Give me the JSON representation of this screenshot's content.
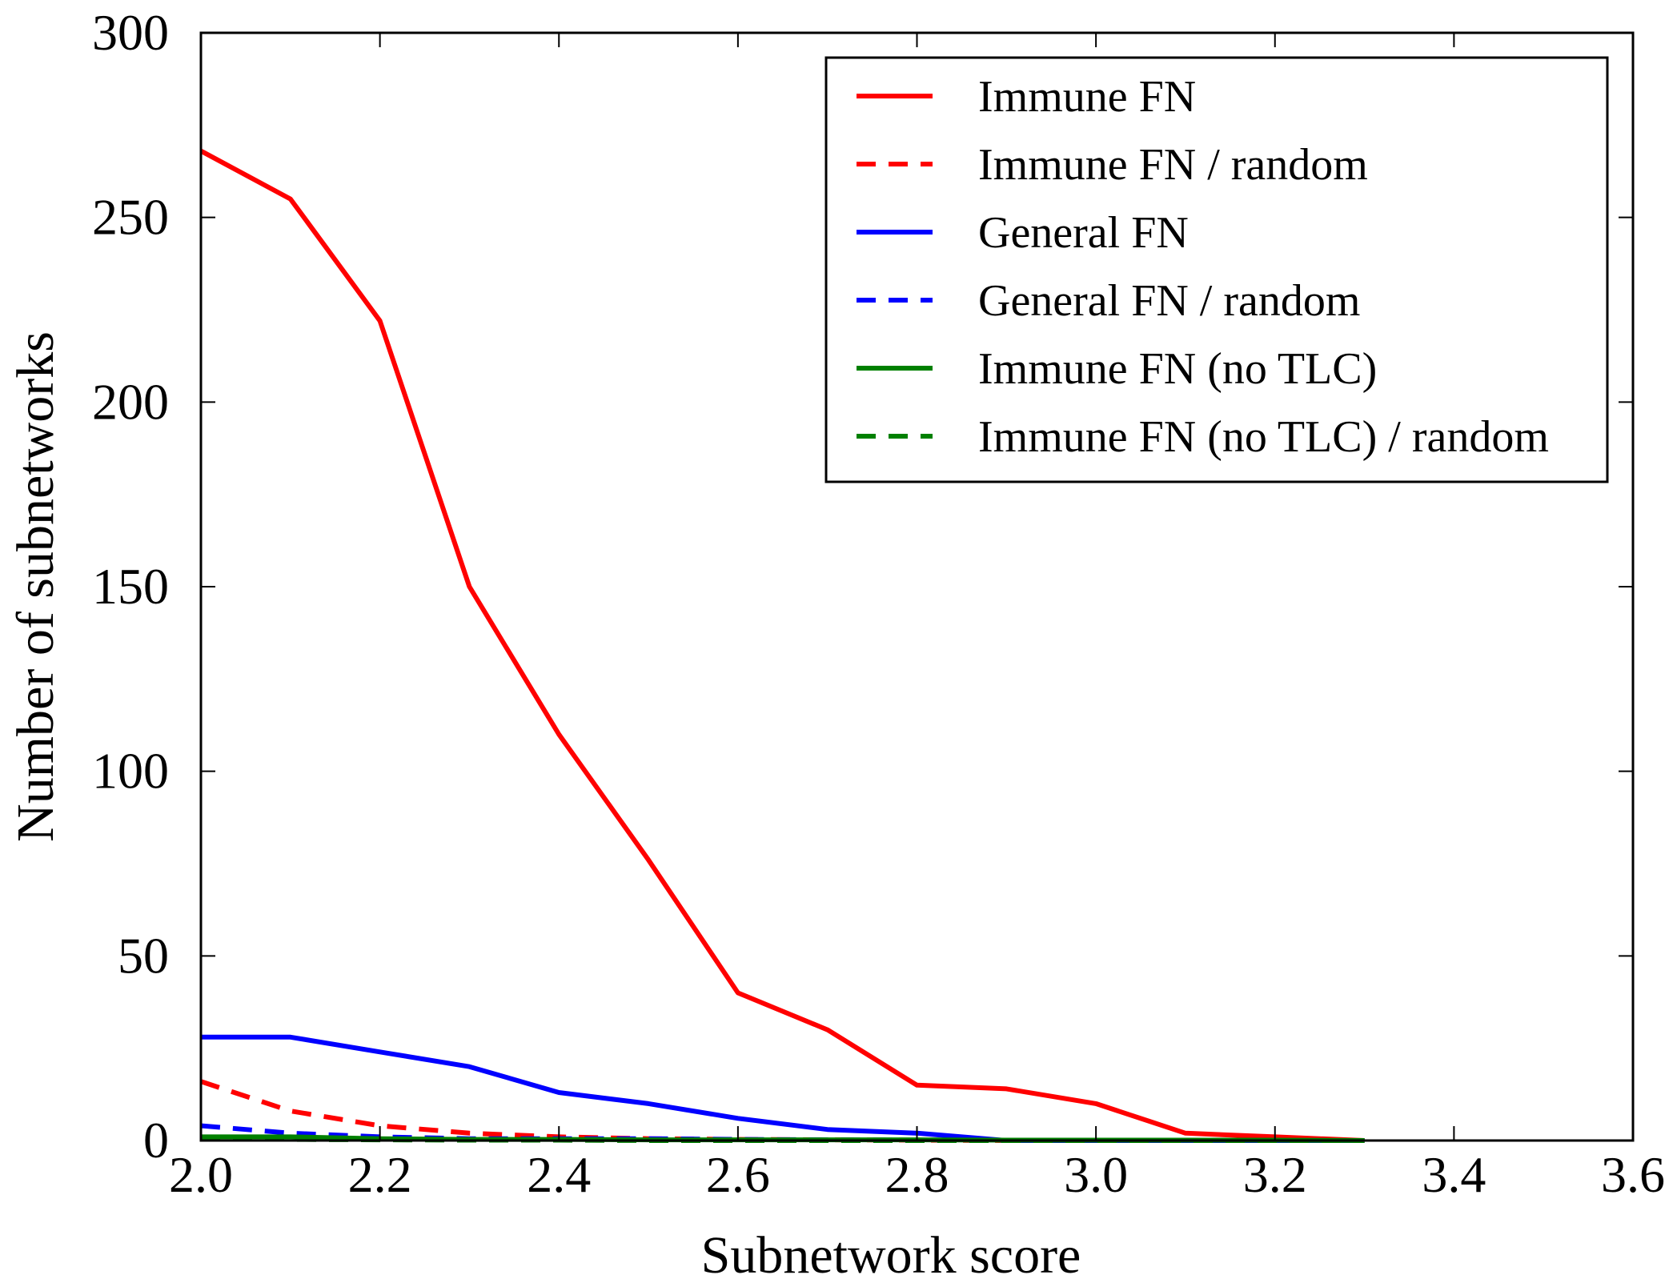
{
  "chart_data": {
    "type": "line",
    "title": "",
    "xlabel": "Subnetwork score",
    "ylabel": "Number of subnetworks",
    "xlim": [
      2.0,
      3.6
    ],
    "ylim": [
      0,
      300
    ],
    "xticks": [
      2.0,
      2.2,
      2.4,
      2.6,
      2.8,
      3.0,
      3.2,
      3.4,
      3.6
    ],
    "xtick_labels": [
      "2.0",
      "2.2",
      "2.4",
      "2.6",
      "2.8",
      "3.0",
      "3.2",
      "3.4",
      "3.6"
    ],
    "yticks": [
      0,
      50,
      100,
      150,
      200,
      250,
      300
    ],
    "ytick_labels": [
      "0",
      "50",
      "100",
      "150",
      "200",
      "250",
      "300"
    ],
    "grid": false,
    "legend_position": "top-right",
    "x": [
      2.0,
      2.1,
      2.2,
      2.3,
      2.4,
      2.5,
      2.6,
      2.7,
      2.8,
      2.9,
      3.0,
      3.1,
      3.2,
      3.3
    ],
    "series": [
      {
        "name": "Immune FN",
        "color": "#ff0000",
        "style": "solid",
        "values": [
          268,
          255,
          222,
          150,
          110,
          76,
          40,
          30,
          15,
          14,
          10,
          2,
          1,
          0
        ]
      },
      {
        "name": "Immune FN / random",
        "color": "#ff0000",
        "style": "dashed",
        "values": [
          16,
          8,
          4,
          2,
          1,
          0.5,
          0.3,
          0.2,
          0.1,
          0,
          0,
          0,
          0,
          0
        ]
      },
      {
        "name": "General FN",
        "color": "#0000ff",
        "style": "solid",
        "values": [
          28,
          28,
          24,
          20,
          13,
          10,
          6,
          3,
          2,
          0,
          0,
          0,
          0,
          0
        ]
      },
      {
        "name": "General FN / random",
        "color": "#0000ff",
        "style": "dashed",
        "values": [
          4,
          2,
          1,
          0.5,
          0.5,
          0.5,
          0.3,
          0.2,
          0.1,
          0,
          0,
          0,
          0,
          0
        ]
      },
      {
        "name": "Immune FN (no TLC)",
        "color": "#008000",
        "style": "solid",
        "values": [
          1,
          1,
          0.5,
          0.3,
          0.3,
          0.2,
          0.2,
          0.2,
          0.2,
          0.1,
          0.1,
          0.1,
          0.1,
          0
        ]
      },
      {
        "name": "Immune FN (no TLC) / random",
        "color": "#008000",
        "style": "dashed",
        "values": [
          0.5,
          0.3,
          0.2,
          0.1,
          0.1,
          0,
          0,
          0,
          0,
          0,
          0,
          0,
          0,
          0
        ]
      }
    ]
  }
}
